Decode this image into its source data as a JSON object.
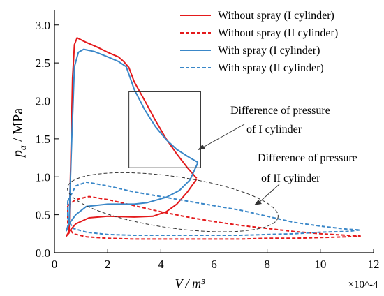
{
  "chart_data": {
    "type": "line",
    "title": "",
    "xlabel": "V / m³",
    "ylabel_symbol": "p",
    "ylabel_subscript": "a",
    "ylabel_unit": " / MPa",
    "x_multiplier": "×10^-4",
    "xlim": [
      0,
      12
    ],
    "ylim": [
      0,
      3.2
    ],
    "x_ticks": [
      "0",
      "2",
      "4",
      "6",
      "8",
      "10",
      "12"
    ],
    "y_ticks": [
      "0.0",
      "0.5",
      "1.0",
      "1.5",
      "2.0",
      "2.5",
      "3.0"
    ],
    "grid": false,
    "legend_position": "top-right",
    "colors": {
      "red": "#e41a1c",
      "blue": "#3a87c8",
      "annotation": "#333333"
    },
    "series": [
      {
        "name": "Without spray (I cylinder)",
        "color": "#e41a1c",
        "dash": "solid",
        "points": [
          [
            5.35,
            0.97
          ],
          [
            5.0,
            0.8
          ],
          [
            4.6,
            0.64
          ],
          [
            4.2,
            0.54
          ],
          [
            3.7,
            0.48
          ],
          [
            3.0,
            0.47
          ],
          [
            2.0,
            0.48
          ],
          [
            1.3,
            0.46
          ],
          [
            0.8,
            0.38
          ],
          [
            0.55,
            0.28
          ],
          [
            0.45,
            0.22
          ],
          [
            0.55,
            0.26
          ],
          [
            0.62,
            1.3
          ],
          [
            0.68,
            2.3
          ],
          [
            0.75,
            2.74
          ],
          [
            0.85,
            2.83
          ],
          [
            1.2,
            2.77
          ],
          [
            1.6,
            2.71
          ],
          [
            2.0,
            2.64
          ],
          [
            2.4,
            2.58
          ],
          [
            2.6,
            2.52
          ],
          [
            2.8,
            2.44
          ],
          [
            3.0,
            2.25
          ],
          [
            3.4,
            2.0
          ],
          [
            3.8,
            1.74
          ],
          [
            4.2,
            1.5
          ],
          [
            4.6,
            1.3
          ],
          [
            5.0,
            1.12
          ],
          [
            5.35,
            0.98
          ]
        ]
      },
      {
        "name": "Without spray (II cylinder)",
        "color": "#e41a1c",
        "dash": "dashed",
        "points": [
          [
            0.5,
            0.62
          ],
          [
            0.8,
            0.7
          ],
          [
            1.3,
            0.74
          ],
          [
            2.0,
            0.7
          ],
          [
            3.0,
            0.62
          ],
          [
            4.0,
            0.54
          ],
          [
            5.0,
            0.47
          ],
          [
            6.0,
            0.41
          ],
          [
            7.0,
            0.36
          ],
          [
            8.0,
            0.32
          ],
          [
            9.0,
            0.28
          ],
          [
            10.0,
            0.25
          ],
          [
            11.0,
            0.23
          ],
          [
            11.5,
            0.22
          ],
          [
            11.0,
            0.21
          ],
          [
            10.0,
            0.2
          ],
          [
            9.0,
            0.19
          ],
          [
            8.0,
            0.19
          ],
          [
            7.0,
            0.18
          ],
          [
            6.0,
            0.18
          ],
          [
            5.0,
            0.18
          ],
          [
            4.0,
            0.18
          ],
          [
            3.0,
            0.18
          ],
          [
            2.0,
            0.19
          ],
          [
            1.2,
            0.21
          ],
          [
            0.7,
            0.25
          ],
          [
            0.5,
            0.35
          ],
          [
            0.5,
            0.62
          ]
        ]
      },
      {
        "name": "With spray (I cylinder)",
        "color": "#3a87c8",
        "dash": "solid",
        "points": [
          [
            5.4,
            1.19
          ],
          [
            5.1,
            0.96
          ],
          [
            4.7,
            0.82
          ],
          [
            4.2,
            0.73
          ],
          [
            3.5,
            0.66
          ],
          [
            3.0,
            0.64
          ],
          [
            2.0,
            0.64
          ],
          [
            1.2,
            0.61
          ],
          [
            0.8,
            0.5
          ],
          [
            0.55,
            0.38
          ],
          [
            0.45,
            0.29
          ],
          [
            0.55,
            0.4
          ],
          [
            0.65,
            1.5
          ],
          [
            0.75,
            2.45
          ],
          [
            0.9,
            2.64
          ],
          [
            1.1,
            2.68
          ],
          [
            1.5,
            2.65
          ],
          [
            2.0,
            2.58
          ],
          [
            2.4,
            2.52
          ],
          [
            2.7,
            2.45
          ],
          [
            3.0,
            2.15
          ],
          [
            3.4,
            1.88
          ],
          [
            3.8,
            1.66
          ],
          [
            4.2,
            1.49
          ],
          [
            4.6,
            1.36
          ],
          [
            5.0,
            1.27
          ],
          [
            5.4,
            1.19
          ]
        ]
      },
      {
        "name": "With spray (II cylinder)",
        "color": "#3a87c8",
        "dash": "dashed",
        "points": [
          [
            0.5,
            0.68
          ],
          [
            0.8,
            0.88
          ],
          [
            1.2,
            0.93
          ],
          [
            2.0,
            0.88
          ],
          [
            3.0,
            0.8
          ],
          [
            4.0,
            0.74
          ],
          [
            5.0,
            0.68
          ],
          [
            6.0,
            0.62
          ],
          [
            7.0,
            0.56
          ],
          [
            8.0,
            0.48
          ],
          [
            9.0,
            0.4
          ],
          [
            10.0,
            0.35
          ],
          [
            11.0,
            0.31
          ],
          [
            11.5,
            0.3
          ],
          [
            11.0,
            0.28
          ],
          [
            10.0,
            0.27
          ],
          [
            9.0,
            0.25
          ],
          [
            8.0,
            0.24
          ],
          [
            7.0,
            0.23
          ],
          [
            6.0,
            0.23
          ],
          [
            5.0,
            0.23
          ],
          [
            4.0,
            0.23
          ],
          [
            3.0,
            0.23
          ],
          [
            2.0,
            0.24
          ],
          [
            1.2,
            0.27
          ],
          [
            0.7,
            0.32
          ],
          [
            0.5,
            0.45
          ],
          [
            0.5,
            0.68
          ]
        ]
      }
    ],
    "annotations": [
      {
        "line1": "Difference of pressure",
        "line2": "of  I cylinder"
      },
      {
        "line1": "Difference of pressure",
        "line2": "of  II  cylinder"
      }
    ],
    "highlight_box": {
      "x0": 2.8,
      "x1": 5.5,
      "y0": 1.12,
      "y1": 2.12
    },
    "highlight_ellipse": {
      "cx": 4.45,
      "cy": 0.665,
      "rx": 4.0,
      "ry": 0.34
    }
  }
}
